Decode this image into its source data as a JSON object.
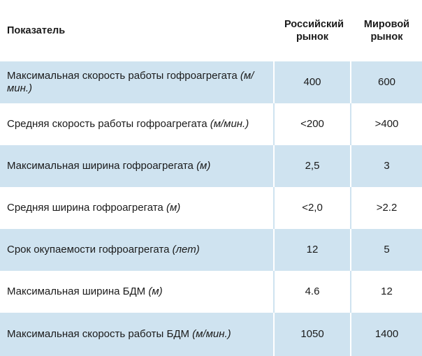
{
  "table": {
    "headers": [
      "Показатель",
      "Российский рынок",
      "Мировой рынок"
    ],
    "rows": [
      {
        "label": "Максимальная скорость работы гофроагрегата",
        "unit": "(м/мин.)",
        "russia": "400",
        "world": "600"
      },
      {
        "label": "Средняя скорость работы гофроагрегата",
        "unit": "(м/мин.)",
        "russia": "<200",
        "world": ">400"
      },
      {
        "label": "Максимальная ширина гофроагрегата",
        "unit": "(м)",
        "russia": "2,5",
        "world": "3"
      },
      {
        "label": "Средняя ширина гофроагрегата",
        "unit": "(м)",
        "russia": "<2,0",
        "world": ">2.2"
      },
      {
        "label": "Срок окупаемости гофроагрегата",
        "unit": "(лет)",
        "russia": "12",
        "world": "5"
      },
      {
        "label": "Максимальная ширина БДМ",
        "unit": "(м)",
        "russia": "4.6",
        "world": "12"
      },
      {
        "label": "Максимальная скорость работы БДМ",
        "unit": "(м/мин.)",
        "russia": "1050",
        "world": "1400"
      }
    ]
  },
  "colors": {
    "row_shade": "#cfe3f0",
    "text": "#1a1a1a"
  }
}
